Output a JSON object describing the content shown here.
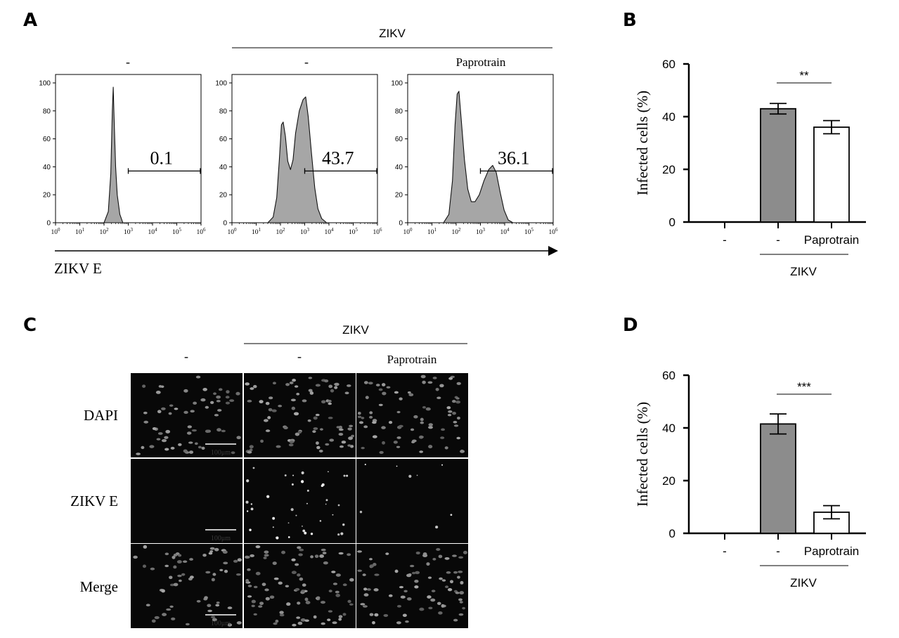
{
  "panel_labels": {
    "a": "A",
    "b": "B",
    "c": "C",
    "d": "D"
  },
  "panel_a": {
    "group_label": "ZIKV",
    "column_labels": [
      "-",
      "-",
      "Paprotrain"
    ],
    "x_axis_label": "ZIKV E",
    "y_ticks": [
      "0",
      "20",
      "40",
      "60",
      "80",
      "100"
    ],
    "x_tick_exponents": [
      "0",
      "1",
      "2",
      "3",
      "4",
      "5",
      "6"
    ],
    "x_tick_base": "10",
    "gate_values": [
      "0.1",
      "43.7",
      "36.1"
    ]
  },
  "panel_c": {
    "group_label": "ZIKV",
    "column_labels": [
      "-",
      "-",
      "Paprotrain"
    ],
    "row_labels": [
      "DAPI",
      "ZIKV E",
      "Merge"
    ],
    "scale_bar_label": "100μm"
  },
  "chart_data": [
    {
      "type": "histogram",
      "panel": "A",
      "x_scale": "log",
      "xlim": [
        1,
        1000000
      ],
      "ylim": [
        0,
        100
      ],
      "samples": [
        {
          "column": "-",
          "gated_percent": 0.1,
          "gate": [
            1000,
            1000000
          ]
        },
        {
          "column": "- (ZIKV)",
          "gated_percent": 43.7,
          "gate": [
            1000,
            1000000
          ]
        },
        {
          "column": "Paprotrain (ZIKV)",
          "gated_percent": 36.1,
          "gate": [
            1000,
            1000000
          ]
        }
      ],
      "curves": [
        {
          "points": [
            [
              100,
              0
            ],
            [
              150,
              8
            ],
            [
              190,
              35
            ],
            [
              220,
              80
            ],
            [
              240,
              97
            ],
            [
              260,
              75
            ],
            [
              300,
              40
            ],
            [
              350,
              20
            ],
            [
              450,
              6
            ],
            [
              600,
              0
            ]
          ]
        },
        {
          "points": [
            [
              30,
              0
            ],
            [
              50,
              4
            ],
            [
              70,
              18
            ],
            [
              90,
              45
            ],
            [
              110,
              70
            ],
            [
              130,
              72
            ],
            [
              160,
              62
            ],
            [
              200,
              44
            ],
            [
              260,
              38
            ],
            [
              330,
              45
            ],
            [
              420,
              64
            ],
            [
              600,
              80
            ],
            [
              850,
              88
            ],
            [
              1100,
              90
            ],
            [
              1400,
              76
            ],
            [
              1900,
              50
            ],
            [
              2600,
              25
            ],
            [
              3500,
              10
            ],
            [
              5000,
              3
            ],
            [
              8000,
              0
            ]
          ]
        },
        {
          "points": [
            [
              30,
              0
            ],
            [
              50,
              6
            ],
            [
              70,
              30
            ],
            [
              90,
              70
            ],
            [
              110,
              92
            ],
            [
              130,
              94
            ],
            [
              160,
              75
            ],
            [
              220,
              45
            ],
            [
              300,
              24
            ],
            [
              420,
              15
            ],
            [
              600,
              15
            ],
            [
              900,
              20
            ],
            [
              1400,
              30
            ],
            [
              2200,
              38
            ],
            [
              3200,
              41
            ],
            [
              4500,
              36
            ],
            [
              6500,
              22
            ],
            [
              9500,
              9
            ],
            [
              14000,
              2
            ],
            [
              22000,
              0
            ]
          ]
        }
      ]
    },
    {
      "type": "bar",
      "panel": "B",
      "categories": [
        "-",
        "-",
        "Paprotrain"
      ],
      "group_label": "ZIKV",
      "values": [
        0,
        43,
        36
      ],
      "errors": [
        0,
        2,
        2.5
      ],
      "colors": [
        "#8c8c8c",
        "#8c8c8c",
        "#ffffff"
      ],
      "ylabel": "Infected cells (%)",
      "yticks": [
        0,
        20,
        40,
        60
      ],
      "ylim": [
        0,
        60
      ],
      "significance": "**"
    },
    {
      "type": "bar",
      "panel": "D",
      "categories": [
        "-",
        "-",
        "Paprotrain"
      ],
      "group_label": "ZIKV",
      "values": [
        0,
        41.5,
        8
      ],
      "errors": [
        0,
        3.8,
        2.5
      ],
      "colors": [
        "#8c8c8c",
        "#8c8c8c",
        "#ffffff"
      ],
      "ylabel": "Infected cells (%)",
      "yticks": [
        0,
        20,
        40,
        60
      ],
      "ylim": [
        0,
        60
      ],
      "significance": "***"
    }
  ]
}
